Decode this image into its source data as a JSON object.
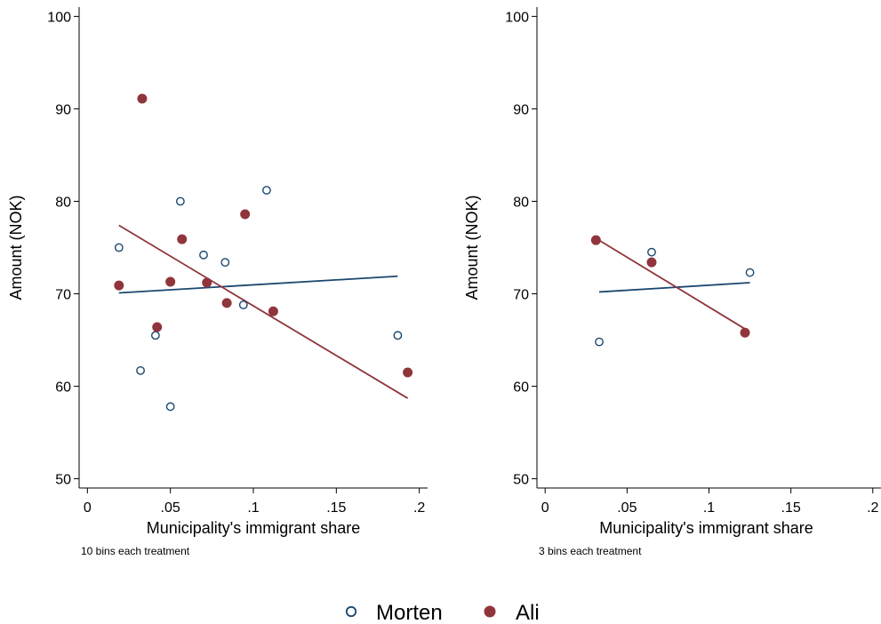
{
  "colors": {
    "morten": "#1a476f",
    "ali": "#90353b"
  },
  "legend": [
    {
      "key": "morten",
      "label": "Morten",
      "marker": "hollow-circle"
    },
    {
      "key": "ali",
      "label": "Ali",
      "marker": "filled-circle"
    }
  ],
  "chart_data": [
    {
      "type": "scatter",
      "xlabel": "Municipality's immigrant share",
      "ylabel": "Amount (NOK)",
      "note": "10 bins each treatment",
      "xlim": [
        -0.005,
        0.205
      ],
      "ylim": [
        49,
        101
      ],
      "xticks": [
        0,
        0.05,
        0.1,
        0.15,
        0.2
      ],
      "xtick_labels": [
        "0",
        ".05",
        ".1",
        ".15",
        ".2"
      ],
      "yticks": [
        50,
        60,
        70,
        80,
        90,
        100
      ],
      "ytick_labels": [
        "50",
        "60",
        "70",
        "80",
        "90",
        "100"
      ],
      "series": [
        {
          "name": "Morten",
          "key": "morten",
          "x": [
            0.019,
            0.032,
            0.041,
            0.05,
            0.056,
            0.07,
            0.083,
            0.094,
            0.108,
            0.187
          ],
          "y": [
            75.0,
            61.7,
            65.5,
            57.8,
            80.0,
            74.2,
            73.4,
            68.8,
            81.2,
            65.5
          ],
          "fit": [
            [
              0.019,
              70.1
            ],
            [
              0.187,
              71.9
            ]
          ]
        },
        {
          "name": "Ali",
          "key": "ali",
          "x": [
            0.019,
            0.033,
            0.042,
            0.05,
            0.057,
            0.072,
            0.084,
            0.095,
            0.112,
            0.193
          ],
          "y": [
            70.9,
            91.1,
            66.4,
            71.3,
            75.9,
            71.2,
            69.0,
            78.6,
            68.1,
            61.5
          ],
          "fit": [
            [
              0.019,
              77.4
            ],
            [
              0.193,
              58.7
            ]
          ]
        }
      ]
    },
    {
      "type": "scatter",
      "xlabel": "Municipality's immigrant share",
      "ylabel": "Amount (NOK)",
      "note": "3 bins each treatment",
      "xlim": [
        -0.005,
        0.205
      ],
      "ylim": [
        49,
        101
      ],
      "xticks": [
        0,
        0.05,
        0.1,
        0.15,
        0.2
      ],
      "xtick_labels": [
        "0",
        ".05",
        ".1",
        ".15",
        ".2"
      ],
      "yticks": [
        50,
        60,
        70,
        80,
        90,
        100
      ],
      "ytick_labels": [
        "50",
        "60",
        "70",
        "80",
        "90",
        "100"
      ],
      "series": [
        {
          "name": "Morten",
          "key": "morten",
          "x": [
            0.033,
            0.065,
            0.125
          ],
          "y": [
            64.8,
            74.5,
            72.3
          ],
          "fit": [
            [
              0.033,
              70.2
            ],
            [
              0.125,
              71.2
            ]
          ]
        },
        {
          "name": "Ali",
          "key": "ali",
          "x": [
            0.031,
            0.065,
            0.122
          ],
          "y": [
            75.8,
            73.4,
            65.8
          ],
          "fit": [
            [
              0.031,
              76.0
            ],
            [
              0.122,
              66.2
            ]
          ]
        }
      ]
    }
  ]
}
